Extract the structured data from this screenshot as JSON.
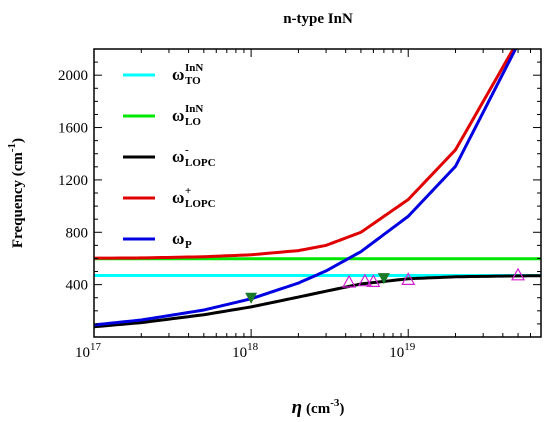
{
  "chart_data": {
    "type": "line",
    "title": "n-type InN",
    "xlabel": {
      "main": "η",
      "unit": "(cm",
      "exp": "-3",
      "close": ")"
    },
    "ylabel": {
      "main": "Frequency (cm",
      "exp": "-1",
      "close": ")"
    },
    "x_scale": "log",
    "xlim": [
      1e+17,
      7e+19
    ],
    "ylim": [
      0,
      2200
    ],
    "x_ticks": [
      {
        "value": 1e+17,
        "base": "10",
        "exp": "17"
      },
      {
        "value": 1e+18,
        "base": "10",
        "exp": "18"
      },
      {
        "value": 1e+19,
        "base": "10",
        "exp": "19"
      }
    ],
    "y_ticks": [
      {
        "value": 400,
        "label": "400"
      },
      {
        "value": 800,
        "label": "800"
      },
      {
        "value": 1200,
        "label": "1200"
      },
      {
        "value": 1600,
        "label": "1600"
      },
      {
        "value": 2000,
        "label": "2000"
      }
    ],
    "legend_position": "top-left",
    "series": [
      {
        "key": "to",
        "symbol": "ω",
        "sup": "InN",
        "sub": "TO",
        "color": "#00ffff",
        "x": [
          1e+17,
          7e+19
        ],
        "y": [
          470,
          470
        ]
      },
      {
        "key": "lo",
        "symbol": "ω",
        "sup": "InN",
        "sub": "LO",
        "color": "#00e600",
        "x": [
          1e+17,
          7e+19
        ],
        "y": [
          598,
          598
        ]
      },
      {
        "key": "lopc_minus",
        "symbol": "ω",
        "sup": "-",
        "sub": "LOPC",
        "color": "#000000",
        "x": [
          1e+17,
          2e+17,
          5e+17,
          1e+18,
          2e+18,
          3e+18,
          5e+18,
          1e+19,
          2e+19,
          5e+19,
          7e+19
        ],
        "y": [
          78,
          110,
          170,
          230,
          305,
          350,
          405,
          445,
          460,
          467,
          468
        ]
      },
      {
        "key": "lopc_plus",
        "symbol": "ω",
        "sup": "+",
        "sub": "LOPC",
        "color": "#e00000",
        "x": [
          1e+17,
          2e+17,
          5e+17,
          1e+18,
          2e+18,
          3e+18,
          5e+18,
          1e+19,
          2e+19,
          4.66e+19
        ],
        "y": [
          602,
          604,
          613,
          628,
          660,
          700,
          800,
          1050,
          1430,
          2200
        ]
      },
      {
        "key": "plasma",
        "symbol": "ω",
        "sup": "",
        "sub": "P",
        "color": "#0000e0",
        "x": [
          1e+17,
          2e+17,
          5e+17,
          1e+18,
          2e+18,
          3e+18,
          5e+18,
          1e+19,
          2e+19,
          4.82e+19
        ],
        "y": [
          92,
          130,
          206,
          292,
          412,
          505,
          652,
          922,
          1304,
          2200
        ]
      }
    ],
    "markers": [
      {
        "shape": "filled-triangle-down",
        "color": "#1a7a2a",
        "points": [
          {
            "x": 1e+18,
            "y": 300
          },
          {
            "x": 7e+18,
            "y": 450
          }
        ]
      },
      {
        "shape": "open-triangle-up",
        "color": "#d020d0",
        "points": [
          {
            "x": 4.2e+18,
            "y": 420
          },
          {
            "x": 5.3e+18,
            "y": 430
          },
          {
            "x": 6e+18,
            "y": 425
          },
          {
            "x": 1e+19,
            "y": 440
          },
          {
            "x": 5e+19,
            "y": 475
          }
        ]
      }
    ]
  }
}
